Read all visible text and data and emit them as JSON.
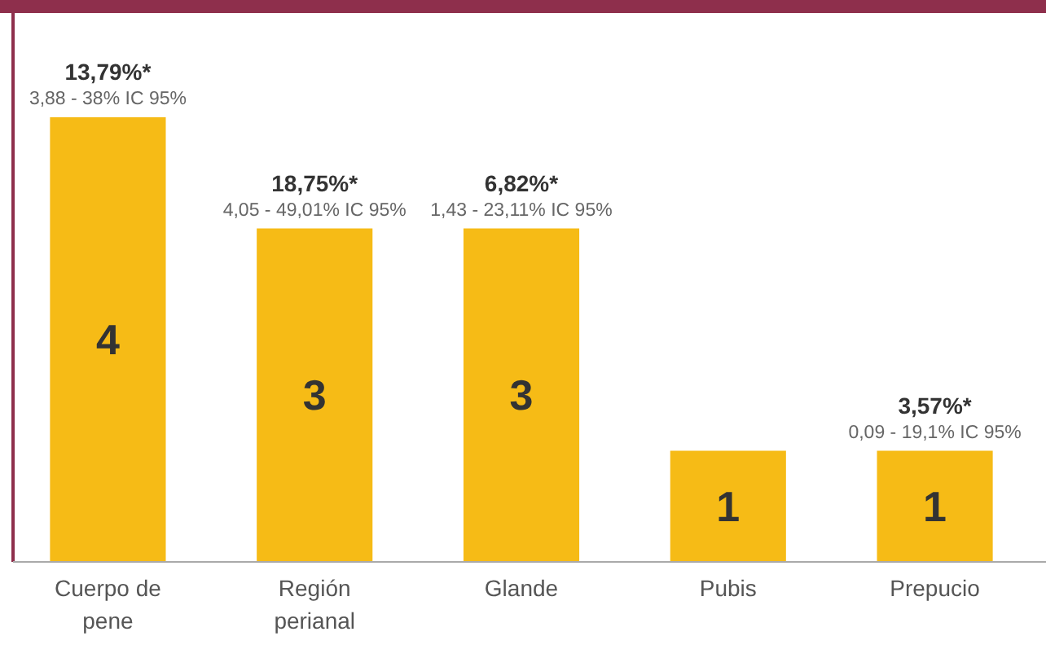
{
  "chart_data": {
    "type": "bar",
    "categories": [
      "Cuerpo de pene",
      "Región perianal",
      "Glande",
      "Pubis",
      "Prepucio"
    ],
    "values": [
      4,
      3,
      3,
      1,
      1
    ],
    "color": "#f6bb16",
    "data_labels": true,
    "annotations": [
      {
        "text": "13,79%*",
        "x": "Cuerpo de pene",
        "y": 4
      },
      {
        "text": "3,88 - 38% IC 95%",
        "x": "Cuerpo de pene",
        "y": 4
      },
      {
        "text": "18,75%*",
        "x": "Región perianal",
        "y": 3
      },
      {
        "text": "4,05 - 49,01% IC 95%",
        "x": "Región perianal",
        "y": 3
      },
      {
        "text": "6,82%*",
        "x": "Glande",
        "y": 3
      },
      {
        "text": "1,43 - 23,11% IC 95%",
        "x": "Glande",
        "y": 3
      },
      {
        "text": "3,57%*",
        "x": "Prepucio",
        "y": 1
      },
      {
        "text": "0,09 - 19,1% IC 95%",
        "x": "Prepucio",
        "y": 1
      }
    ]
  }
}
